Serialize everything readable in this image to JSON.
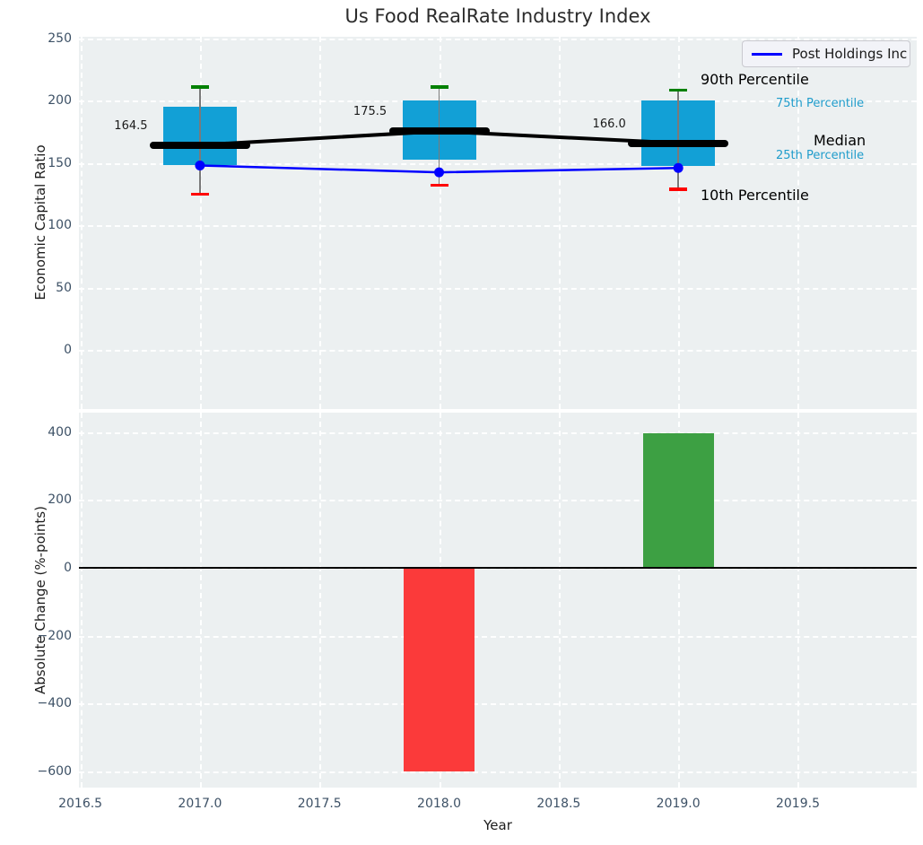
{
  "figure": {
    "title": "Us Food RealRate Industry Index"
  },
  "legend": {
    "label": "Post Holdings Inc"
  },
  "colors": {
    "background": "#ecf0f1",
    "grid": "#ffffff",
    "tick_text": "#3d5166",
    "box": "#12a0d6",
    "median": "#000000",
    "whisker": "#7a7a7a",
    "cap_upper": "#008000",
    "cap_lower": "#ff0000",
    "company_line": "#0000ff",
    "bar_negative": "#fb3a3a",
    "bar_positive": "#3da043",
    "cyan_label": "#1f9ccb"
  },
  "chart_data": [
    {
      "type": "boxplot+line",
      "title": "Us Food RealRate Industry Index",
      "ylabel": "Economic Capital Ratio",
      "x": [
        2017,
        2018,
        2019
      ],
      "xlim": [
        2016.494,
        2019.997
      ],
      "ylim": [
        -47.6,
        251.4
      ],
      "yticks": [
        250,
        200,
        150,
        100,
        50,
        0
      ],
      "xticks": [
        2016.5,
        2017.0,
        2017.5,
        2018.0,
        2018.5,
        2019.0,
        2019.5
      ],
      "grid": true,
      "legend_position": "upper right",
      "boxes": [
        {
          "x": 2017,
          "p10": 125,
          "p25": 148,
          "median": 164.5,
          "p75": 195,
          "p90": 211,
          "label": "164.5"
        },
        {
          "x": 2018,
          "p10": 132,
          "p25": 153,
          "median": 175.5,
          "p75": 200,
          "p90": 211,
          "label": "175.5"
        },
        {
          "x": 2019,
          "p10": 129,
          "p25": 148,
          "median": 166.0,
          "p75": 200,
          "p90": 208.5,
          "label": "166.0"
        }
      ],
      "series": [
        {
          "name": "Post Holdings Inc",
          "values": [
            148,
            142.5,
            146
          ],
          "color": "#0000ff",
          "markers": true
        },
        {
          "name": "Median connector",
          "values": [
            164.5,
            175.5,
            166.0
          ],
          "color": "#000000",
          "markers": false
        }
      ],
      "percentile_labels": [
        {
          "text": "90th Percentile",
          "style": "large"
        },
        {
          "text": "75th Percentile",
          "style": "small"
        },
        {
          "text": "Median",
          "style": "large"
        },
        {
          "text": "25th Percentile",
          "style": "small"
        },
        {
          "text": "10th Percentile",
          "style": "large"
        }
      ]
    },
    {
      "type": "bar",
      "ylabel": "Absolute Change (%-points)",
      "xlabel": "Year",
      "x": [
        2018,
        2019
      ],
      "values": [
        -600,
        395
      ],
      "bar_colors": [
        "#fb3a3a",
        "#3da043"
      ],
      "xlim": [
        2016.494,
        2019.997
      ],
      "ylim": [
        -648,
        457
      ],
      "yticks": [
        400,
        200,
        0,
        -200,
        -400,
        -600
      ],
      "xticks": [
        2016.5,
        2017.0,
        2017.5,
        2018.0,
        2018.5,
        2019.0,
        2019.5
      ],
      "grid": true,
      "zero_line": true
    }
  ]
}
